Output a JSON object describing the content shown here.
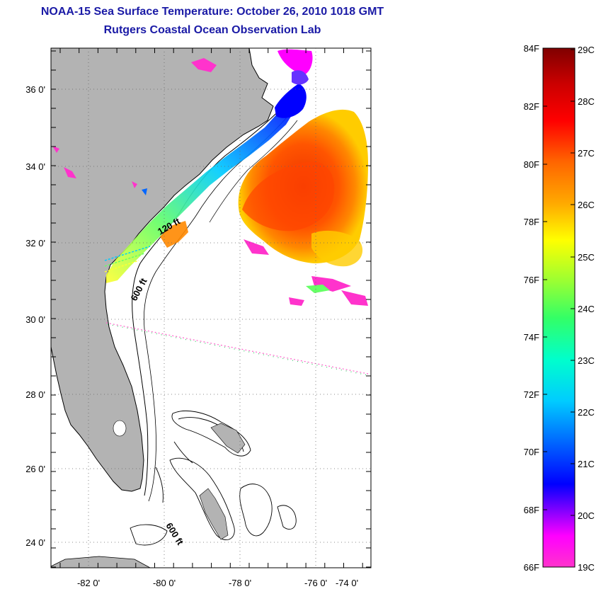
{
  "header": {
    "title": "NOAA-15 Sea Surface Temperature:  October 26, 2010 1018 GMT",
    "subtitle": "Rutgers Coastal Ocean Observation Lab"
  },
  "map": {
    "lon_ticks": [
      "-82 0'",
      "-80 0'",
      "-78 0'",
      "-76 0'",
      "-74 0'"
    ],
    "lat_ticks": [
      "36 0'",
      "34 0'",
      "32 0'",
      "30 0'",
      "28 0'",
      "26 0'",
      "24 0'"
    ],
    "contour_labels": {
      "shelf_120": "120 ft",
      "shelf_600": "600 ft",
      "bahamas_600": "600 ft"
    },
    "colors": {
      "land": "#b3b3b3",
      "ocean": "#ffffff"
    }
  },
  "colorbar": {
    "fahrenheit_labels": [
      "84F",
      "82F",
      "80F",
      "78F",
      "76F",
      "74F",
      "72F",
      "70F",
      "68F",
      "66F"
    ],
    "celsius_labels": [
      "29C",
      "28C",
      "27C",
      "26C",
      "25C",
      "24C",
      "23C",
      "22C",
      "21C",
      "20C",
      "19C"
    ],
    "stops": [
      "#ff33cc",
      "#ff00ff",
      "#9900ff",
      "#0000ff",
      "#0066ff",
      "#00ccff",
      "#00ffcc",
      "#33ff66",
      "#99ff33",
      "#ffff00",
      "#ffaa00",
      "#ff6600",
      "#ff0000",
      "#cc0000",
      "#800000"
    ]
  }
}
